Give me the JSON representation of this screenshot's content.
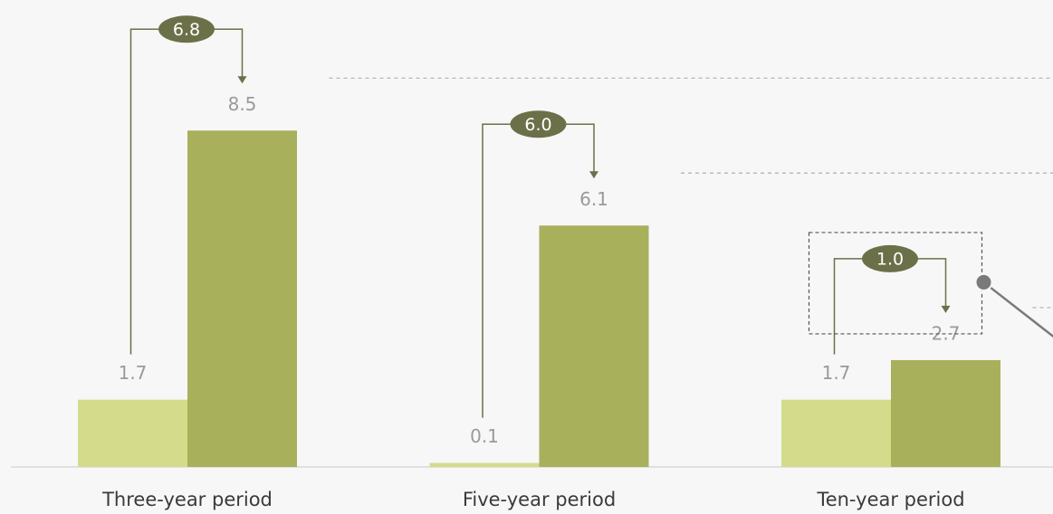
{
  "chart_data": {
    "type": "bar",
    "categories": [
      "Three-year period",
      "Five-year period",
      "Ten-year period"
    ],
    "series": [
      {
        "color": "#d4dc8c",
        "values": [
          1.7,
          0.1,
          1.7
        ]
      },
      {
        "color": "#a8b05c",
        "values": [
          8.5,
          6.1,
          2.7
        ]
      }
    ],
    "differences": [
      6.8,
      6.0,
      1.0
    ],
    "difference_labels": [
      "6.8",
      "6.0",
      "1.0"
    ],
    "ylim": [
      0,
      11.8
    ]
  }
}
